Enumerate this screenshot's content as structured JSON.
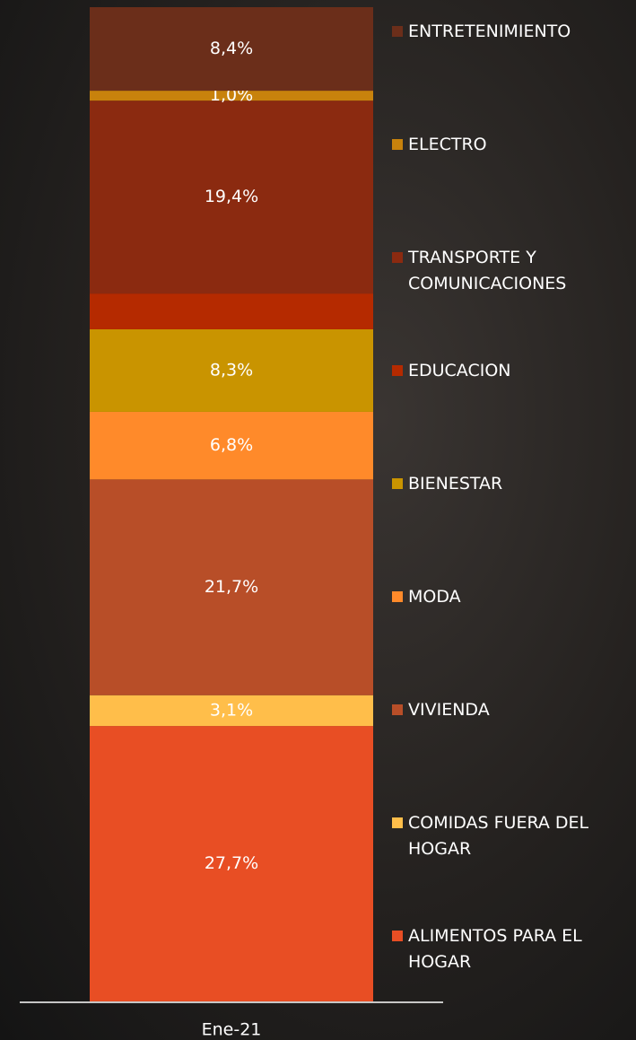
{
  "chart_data": {
    "type": "stacked_bar",
    "categories": [
      "Ene-21"
    ],
    "series": [
      {
        "name": "ALIMENTOS PARA EL HOGAR",
        "color": "#e84e24",
        "values": [
          27.7
        ],
        "value_labels": [
          "27,7%"
        ]
      },
      {
        "name": "COMIDAS FUERA DEL HOGAR",
        "color": "#ffbe4a",
        "values": [
          3.1
        ],
        "value_labels": [
          "3,1%"
        ]
      },
      {
        "name": "VIVIENDA",
        "color": "#b84e28",
        "values": [
          21.7
        ],
        "value_labels": [
          "21,7%"
        ]
      },
      {
        "name": "MODA",
        "color": "#ff8a2a",
        "values": [
          6.8
        ],
        "value_labels": [
          "6,8%"
        ]
      },
      {
        "name": "BIENESTAR",
        "color": "#c99400",
        "values": [
          8.3
        ],
        "value_labels": [
          "8,3%"
        ]
      },
      {
        "name": "EDUCACION",
        "color": "#b52a00",
        "values": [
          3.6
        ],
        "value_labels": [
          null
        ]
      },
      {
        "name": "TRANSPORTE Y COMUNICACIONES",
        "color": "#8b2a10",
        "values": [
          19.4
        ],
        "value_labels": [
          "19,4%"
        ]
      },
      {
        "name": "ELECTRO",
        "color": "#c8820c",
        "values": [
          1.0
        ],
        "value_labels": [
          "1,0%"
        ]
      },
      {
        "name": "ENTRETENIMIENTO",
        "color": "#6b2e1a",
        "values": [
          8.4
        ],
        "value_labels": [
          "8,4%"
        ]
      }
    ]
  }
}
